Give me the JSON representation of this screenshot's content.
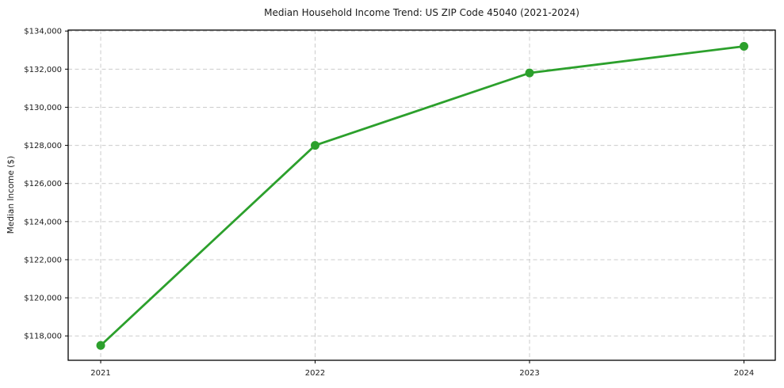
{
  "chart_data": {
    "type": "line",
    "title": "Median Household Income Trend: US ZIP Code 45040 (2021-2024)",
    "xlabel": "",
    "ylabel": "Median Income ($)",
    "categories": [
      "2021",
      "2022",
      "2023",
      "2024"
    ],
    "series": [
      {
        "values": [
          117500,
          128000,
          131800,
          133200
        ]
      }
    ],
    "yticks": [
      118000,
      120000,
      122000,
      124000,
      126000,
      128000,
      130000,
      132000,
      134000
    ],
    "ytick_labels": [
      "$118,000",
      "$120,000",
      "$122,000",
      "$124,000",
      "$126,000",
      "$128,000",
      "$130,000",
      "$132,000",
      "$134,000"
    ],
    "ylim": [
      116720,
      134050
    ],
    "grid": true,
    "legend": false,
    "colors": {
      "line": "#2ca02c",
      "marker": "#2ca02c",
      "grid": "#cccccc",
      "spine": "#000000",
      "text": "#1a1a1a",
      "background": "#ffffff"
    }
  }
}
